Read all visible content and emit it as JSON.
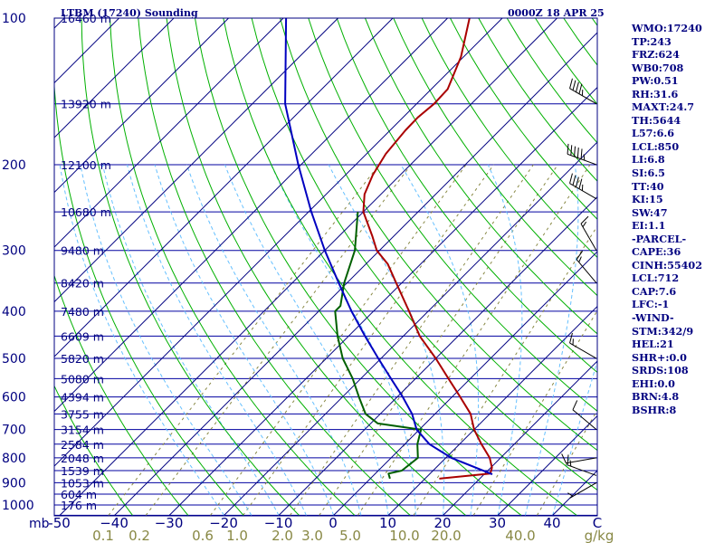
{
  "header": {
    "station": "LTBM (17240) Sounding",
    "time": "0000Z 18 APR 25"
  },
  "colors": {
    "isobar": "#0000a0",
    "isotherm": "#000080",
    "dry_adiabat": "#00b000",
    "moist_adiabat": "#66c0ff",
    "mixing_ratio": "#888844",
    "temperature": "#aa0000",
    "dewpoint": "#006000",
    "parcel": "#0000c0",
    "tick_text": "#000080",
    "wind": "#000000"
  },
  "axis": {
    "unit_mb": "mb",
    "unit_gkg": "g/kg",
    "unit_c": "C"
  },
  "chart_data": {
    "type": "line",
    "title": "LTBM (17240) Sounding",
    "subtitle": "0000Z 18 APR 25",
    "diagram": "skew-T log-P",
    "pressure_ticks": [
      {
        "p": 100,
        "label": "100"
      },
      {
        "p": 200,
        "label": "200"
      },
      {
        "p": 300,
        "label": "300"
      },
      {
        "p": 400,
        "label": "400"
      },
      {
        "p": 500,
        "label": "500"
      },
      {
        "p": 600,
        "label": "600"
      },
      {
        "p": 700,
        "label": "700"
      },
      {
        "p": 800,
        "label": "800"
      },
      {
        "p": 900,
        "label": "900"
      },
      {
        "p": 1000,
        "label": "1000"
      }
    ],
    "temperature_ticks": [
      {
        "t": -50,
        "label": "-50"
      },
      {
        "t": -40,
        "label": "−40"
      },
      {
        "t": -30,
        "label": "−30"
      },
      {
        "t": -20,
        "label": "−20"
      },
      {
        "t": -10,
        "label": "−10"
      },
      {
        "t": 0,
        "label": "0"
      },
      {
        "t": 10,
        "label": "10"
      },
      {
        "t": 20,
        "label": "20"
      },
      {
        "t": 30,
        "label": "30"
      },
      {
        "t": 40,
        "label": "40"
      }
    ],
    "mixing_ratio_labels": [
      "0.1",
      "0.2",
      "0.6",
      "1.0",
      "2.0",
      "3.0",
      "5.0",
      "10.0",
      "20.0",
      "40.0"
    ],
    "mixing_ratio_values": [
      0.1,
      0.2,
      0.6,
      1.0,
      2.0,
      3.0,
      5.0,
      10.0,
      20.0,
      40.0
    ],
    "height_labels": [
      {
        "p": 100,
        "label": "16460 m"
      },
      {
        "p": 150,
        "label": "13920 m"
      },
      {
        "p": 200,
        "label": "12100 m"
      },
      {
        "p": 250,
        "label": "10680 m"
      },
      {
        "p": 300,
        "label": "9480 m"
      },
      {
        "p": 350,
        "label": "8420 m"
      },
      {
        "p": 400,
        "label": "7480 m"
      },
      {
        "p": 450,
        "label": "6609 m"
      },
      {
        "p": 500,
        "label": "5820 m"
      },
      {
        "p": 550,
        "label": "5080 m"
      },
      {
        "p": 600,
        "label": "4394 m"
      },
      {
        "p": 650,
        "label": "3755 m"
      },
      {
        "p": 700,
        "label": "3154 m"
      },
      {
        "p": 750,
        "label": "2584 m"
      },
      {
        "p": 800,
        "label": "2048 m"
      },
      {
        "p": 850,
        "label": "1539 m"
      },
      {
        "p": 900,
        "label": "1053 m"
      },
      {
        "p": 950,
        "label": "604 m"
      },
      {
        "p": 1000,
        "label": "176 m"
      }
    ],
    "series": [
      {
        "name": "temperature",
        "points": [
          {
            "p": 883,
            "t": 12.6
          },
          {
            "p": 862,
            "t": 21.0
          },
          {
            "p": 838,
            "t": 20.2
          },
          {
            "p": 800,
            "t": 18.0
          },
          {
            "p": 750,
            "t": 14.0
          },
          {
            "p": 700,
            "t": 10.0
          },
          {
            "p": 650,
            "t": 6.5
          },
          {
            "p": 600,
            "t": 1.5
          },
          {
            "p": 550,
            "t": -4.0
          },
          {
            "p": 500,
            "t": -10.0
          },
          {
            "p": 450,
            "t": -17.0
          },
          {
            "p": 400,
            "t": -23.5
          },
          {
            "p": 350,
            "t": -31.0
          },
          {
            "p": 320,
            "t": -36.0
          },
          {
            "p": 300,
            "t": -40.5
          },
          {
            "p": 280,
            "t": -44.0
          },
          {
            "p": 250,
            "t": -50.0
          },
          {
            "p": 230,
            "t": -53.0
          },
          {
            "p": 210,
            "t": -55.0
          },
          {
            "p": 190,
            "t": -56.5
          },
          {
            "p": 170,
            "t": -57.2
          },
          {
            "p": 160,
            "t": -57.3
          },
          {
            "p": 150,
            "t": -56.8
          },
          {
            "p": 140,
            "t": -57.0
          },
          {
            "p": 120,
            "t": -60.5
          },
          {
            "p": 100,
            "t": -66.0
          }
        ]
      },
      {
        "name": "dewpoint",
        "points": [
          {
            "p": 883,
            "t": 3.6
          },
          {
            "p": 862,
            "t": 2.4
          },
          {
            "p": 850,
            "t": 4.3
          },
          {
            "p": 800,
            "t": 4.9
          },
          {
            "p": 750,
            "t": 2.3
          },
          {
            "p": 700,
            "t": 0.3
          },
          {
            "p": 680,
            "t": -8.7
          },
          {
            "p": 650,
            "t": -12.7
          },
          {
            "p": 600,
            "t": -17.0
          },
          {
            "p": 550,
            "t": -21.5
          },
          {
            "p": 500,
            "t": -27.0
          },
          {
            "p": 450,
            "t": -32.0
          },
          {
            "p": 400,
            "t": -37.0
          },
          {
            "p": 390,
            "t": -37.0
          },
          {
            "p": 350,
            "t": -40.5
          },
          {
            "p": 300,
            "t": -44.5
          },
          {
            "p": 250,
            "t": -51.0
          }
        ]
      },
      {
        "name": "parcel",
        "points": [
          {
            "p": 865,
            "t": 21.5
          },
          {
            "p": 800,
            "t": 11.0
          },
          {
            "p": 750,
            "t": 4.5
          },
          {
            "p": 700,
            "t": -0.5
          },
          {
            "p": 650,
            "t": -4.2
          },
          {
            "p": 600,
            "t": -9.0
          },
          {
            "p": 550,
            "t": -14.5
          },
          {
            "p": 500,
            "t": -20.5
          },
          {
            "p": 450,
            "t": -27.0
          },
          {
            "p": 400,
            "t": -34.0
          },
          {
            "p": 350,
            "t": -41.5
          },
          {
            "p": 300,
            "t": -50.0
          },
          {
            "p": 250,
            "t": -59.5
          },
          {
            "p": 200,
            "t": -70.5
          },
          {
            "p": 150,
            "t": -84.0
          },
          {
            "p": 100,
            "t": -99.5
          }
        ]
      }
    ],
    "wind_barbs": [
      {
        "p": 100,
        "dir": 10,
        "spd": 15
      },
      {
        "p": 150,
        "dir": 300,
        "spd": 45
      },
      {
        "p": 200,
        "dir": 290,
        "spd": 55
      },
      {
        "p": 235,
        "dir": 300,
        "spd": 45
      },
      {
        "p": 300,
        "dir": 330,
        "spd": 15
      },
      {
        "p": 350,
        "dir": 320,
        "spd": 15
      },
      {
        "p": 500,
        "dir": 300,
        "spd": 15
      },
      {
        "p": 700,
        "dir": 310,
        "spd": 10
      },
      {
        "p": 800,
        "dir": 260,
        "spd": 10
      },
      {
        "p": 870,
        "dir": 290,
        "spd": 15
      },
      {
        "p": 900,
        "dir": 240,
        "spd": 5
      }
    ]
  },
  "indices": [
    "WMO:17240",
    "TP:243",
    "FRZ:624",
    "WB0:708",
    "PW:0.51",
    "RH:31.6",
    "MAXT:24.7",
    "TH:5644",
    "L57:6.6",
    "LCL:850",
    "LI:6.8",
    "SI:6.5",
    "TT:40",
    "KI:15",
    "SW:47",
    "EI:1.1",
    "-PARCEL-",
    "CAPE:36",
    "CINH:55402",
    "LCL:712",
    "CAP:7.6",
    "LFC:-1",
    "-WIND-",
    "STM:342/9",
    "HEL:21",
    "SHR+:0.0",
    "SRDS:108",
    "EHI:0.0",
    "BRN:4.8",
    "BSHR:8"
  ]
}
